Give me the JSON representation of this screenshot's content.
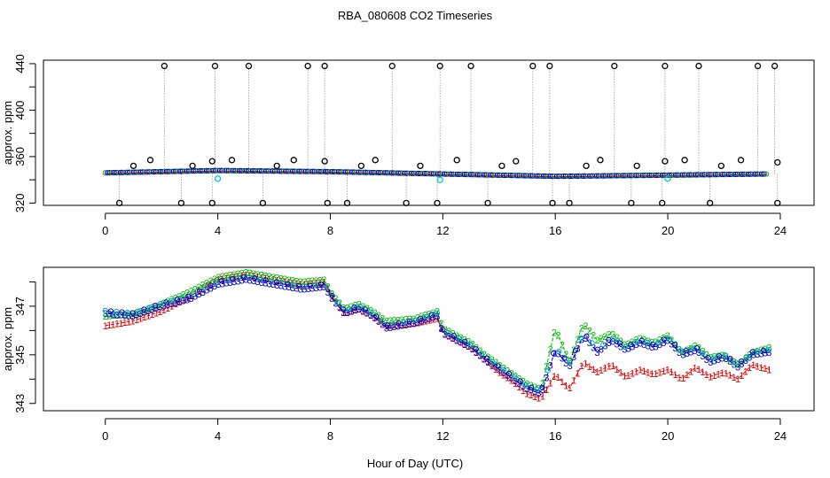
{
  "chart_data": {
    "type": "line",
    "title": "RBA_080608  CO2 Timeseries",
    "xlabel": "Hour of Day (UTC)",
    "xlim": [
      -2.2,
      25.2
    ],
    "x_ticks": [
      0,
      4,
      8,
      12,
      16,
      20,
      24
    ],
    "x_tick_labels": [
      "0",
      "4",
      "8",
      "12",
      "16",
      "20",
      "24"
    ],
    "panels": [
      {
        "name": "top",
        "ylabel": "approx. ppm",
        "ylim": [
          318,
          443
        ],
        "y_ticks": [
          320,
          360,
          400,
          440
        ],
        "y_tick_labels": [
          "320",
          "360",
          "400",
          "440"
        ],
        "y_minor_ticks": [
          340,
          380,
          420
        ],
        "baseline": {
          "x": [
            0,
            4,
            8,
            12,
            16,
            20,
            23.5
          ],
          "y": [
            346,
            348,
            347,
            345,
            343,
            344,
            345
          ]
        },
        "spike_times": [
          2.1,
          3.9,
          5.1,
          7.2,
          7.8,
          10.2,
          11.9,
          13.0,
          15.2,
          15.8,
          18.1,
          19.9,
          21.1,
          23.2,
          23.8
        ],
        "spike_value": 438,
        "dip_times": [
          0.5,
          2.7,
          3.8,
          5.6,
          7.9,
          8.6,
          10.7,
          11.8,
          13.6,
          15.9,
          16.5,
          18.7,
          19.8,
          21.5,
          23.9
        ],
        "dip_value": 320,
        "mid_outliers": {
          "x": [
            1.0,
            1.6,
            3.1,
            3.8,
            4.5,
            6.1,
            6.7,
            7.8,
            9.1,
            9.6,
            11.2,
            12.5,
            14.1,
            14.6,
            17.1,
            17.6,
            18.9,
            19.9,
            20.6,
            21.9,
            22.6,
            23.9
          ],
          "y": [
            352,
            357,
            352,
            356,
            357,
            352,
            357,
            356,
            352,
            357,
            352,
            357,
            352,
            356,
            352,
            357,
            352,
            356,
            357,
            352,
            357,
            355
          ]
        },
        "cyan_points": {
          "x": [
            4.0,
            11.9,
            20.0
          ],
          "y": [
            341,
            340,
            341
          ]
        }
      },
      {
        "name": "bottom",
        "ylabel": "approx. ppm",
        "ylim": [
          342.7,
          348.6
        ],
        "y_ticks": [
          343,
          345,
          347
        ],
        "y_tick_labels": [
          "343",
          "345",
          "347"
        ],
        "y_minor_ticks": [
          344,
          346,
          348
        ],
        "series": [
          {
            "name": "1",
            "color": "#dd0000",
            "offset": 0.28,
            "x": [
              0,
              1,
              2,
              3,
              4,
              5,
              6,
              7,
              7.8,
              8.0,
              8.5,
              9,
              9.5,
              10,
              11,
              11.8,
              12.0,
              12.5,
              13,
              13.5,
              14,
              14.5,
              15,
              15.5,
              16,
              16.5,
              17,
              17.5,
              18,
              18.5,
              19,
              19.5,
              20,
              20.5,
              21,
              21.5,
              22,
              22.5,
              23,
              23.6
            ],
            "y": [
              346.2,
              346.4,
              346.8,
              347.4,
              348.1,
              348.3,
              348.1,
              347.9,
              348.0,
              347.5,
              346.7,
              346.9,
              346.6,
              346.2,
              346.3,
              346.5,
              345.9,
              345.6,
              345.3,
              344.8,
              344.3,
              343.9,
              343.4,
              343.2,
              344.2,
              343.6,
              344.7,
              344.3,
              344.6,
              344.1,
              344.4,
              344.2,
              344.4,
              344.0,
              344.5,
              344.1,
              344.3,
              344.0,
              344.6,
              344.4
            ]
          },
          {
            "name": "2",
            "color": "#00bb00",
            "offset": 0.07,
            "x": [
              0,
              1,
              2,
              3,
              4,
              5,
              6,
              7,
              7.8,
              8.0,
              8.5,
              9,
              9.5,
              10,
              11,
              11.8,
              12.0,
              12.5,
              13,
              13.5,
              14,
              14.5,
              15,
              15.5,
              16,
              16.5,
              17,
              17.5,
              18,
              18.5,
              19,
              19.5,
              20,
              20.5,
              21,
              21.5,
              22,
              22.5,
              23,
              23.6
            ],
            "y": [
              346.6,
              346.7,
              347.1,
              347.6,
              348.2,
              348.4,
              348.2,
              348.0,
              348.1,
              347.6,
              346.9,
              347.1,
              346.8,
              346.4,
              346.5,
              346.8,
              346.1,
              345.8,
              345.5,
              345.0,
              344.6,
              344.2,
              343.8,
              343.6,
              346.1,
              344.7,
              346.3,
              345.6,
              345.9,
              345.4,
              345.7,
              345.5,
              345.8,
              345.1,
              345.4,
              344.9,
              345.0,
              344.6,
              345.1,
              345.3
            ]
          },
          {
            "name": "3",
            "color": "#0000cc",
            "offset": -0.1,
            "x": [
              0,
              1,
              2,
              3,
              4,
              5,
              6,
              7,
              7.8,
              8.0,
              8.5,
              9,
              9.5,
              10,
              11,
              11.8,
              12.0,
              12.5,
              13,
              13.5,
              14,
              14.5,
              15,
              15.5,
              16,
              16.5,
              17,
              17.5,
              18,
              18.5,
              19,
              19.5,
              20,
              20.5,
              21,
              21.5,
              22,
              22.5,
              23,
              23.6
            ],
            "y": [
              346.7,
              346.6,
              347.0,
              347.3,
              347.9,
              348.1,
              347.9,
              347.7,
              347.8,
              347.4,
              346.7,
              346.9,
              346.6,
              346.1,
              346.3,
              346.6,
              345.9,
              345.6,
              345.3,
              344.8,
              344.4,
              344.0,
              343.6,
              343.4,
              345.2,
              344.5,
              345.8,
              345.1,
              345.6,
              345.2,
              345.5,
              345.3,
              345.6,
              345.0,
              345.2,
              344.7,
              344.9,
              344.5,
              345.0,
              345.1
            ]
          }
        ]
      }
    ]
  }
}
